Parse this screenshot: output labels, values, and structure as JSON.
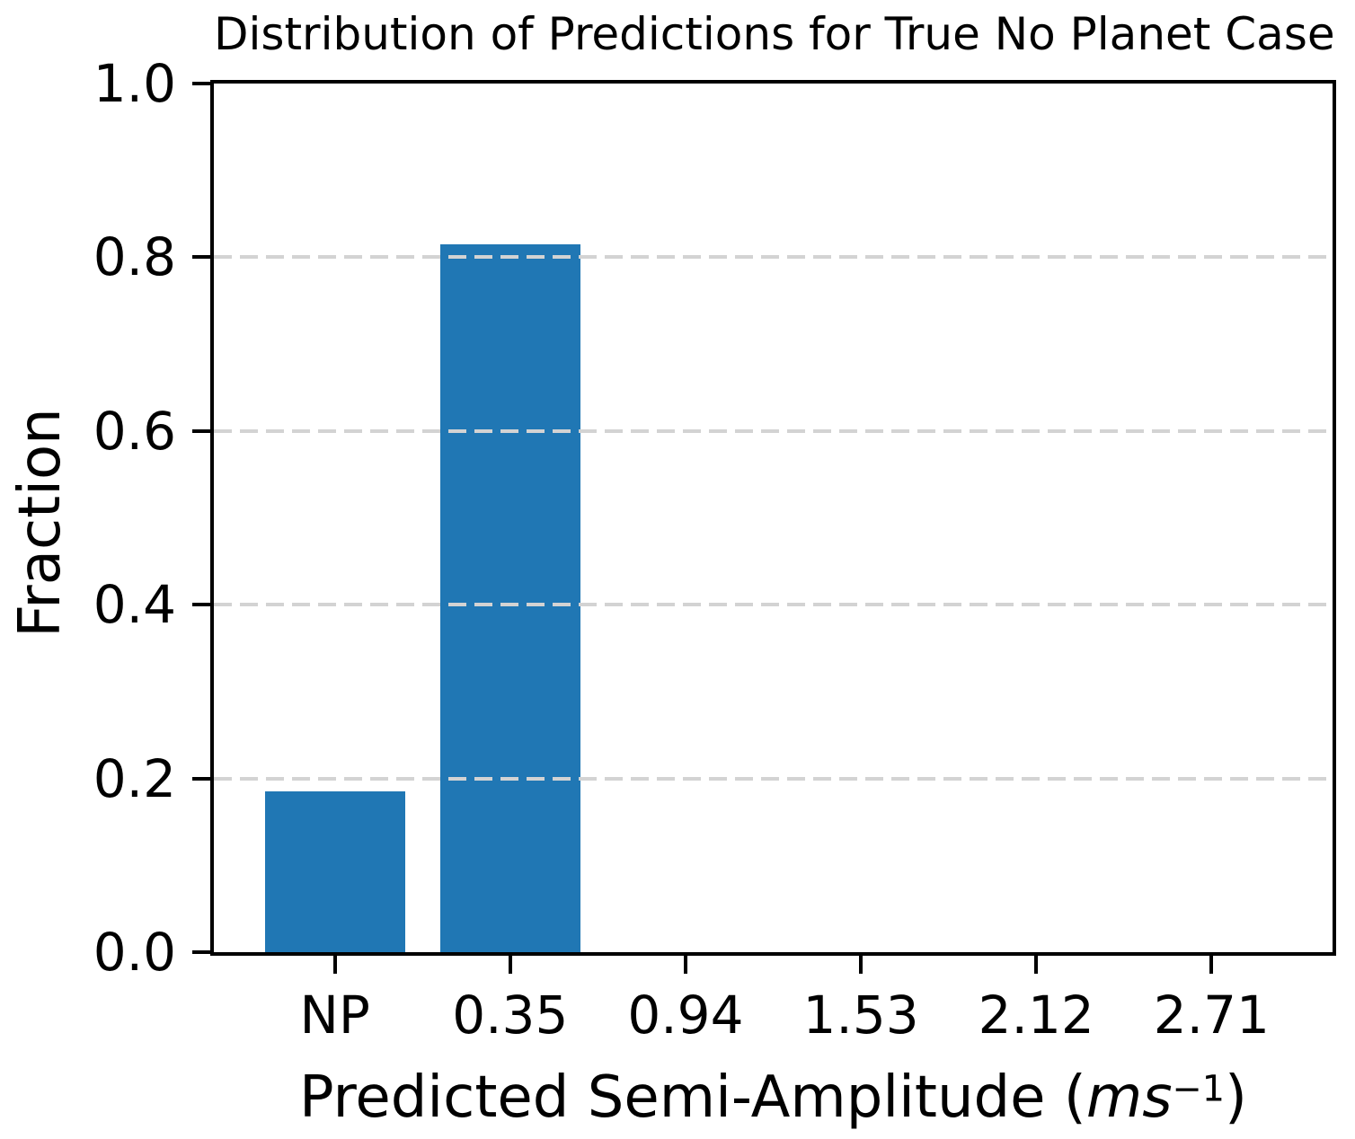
{
  "chart_data": {
    "type": "bar",
    "title": "Distribution of Predictions for True No Planet Case",
    "categories": [
      "NP",
      "0.35",
      "0.94",
      "1.53",
      "2.12",
      "2.71"
    ],
    "values": [
      0.185,
      0.815,
      0,
      0,
      0,
      0
    ],
    "ylabel": "Fraction",
    "xlabel": {
      "prefix": "Predicted Semi-Amplitude (",
      "math_italic": "ms",
      "superscript": "−1",
      "suffix": ")"
    },
    "ytick_labels": [
      "0.0",
      "0.2",
      "0.4",
      "0.6",
      "0.8",
      "1.0"
    ],
    "ytick_values": [
      0.0,
      0.2,
      0.4,
      0.6,
      0.8,
      1.0
    ],
    "grid_values": [
      0.2,
      0.4,
      0.6,
      0.8
    ],
    "ylim": [
      0,
      1
    ],
    "xlim": [
      -0.69,
      5.69
    ],
    "bar_width": 0.8,
    "grid_style": "dashed",
    "legend": null,
    "colors": {
      "bar": "#2077b4",
      "grid": "#d3d3d3",
      "axis": "#000000",
      "text": "#000000",
      "background": "#ffffff"
    }
  }
}
